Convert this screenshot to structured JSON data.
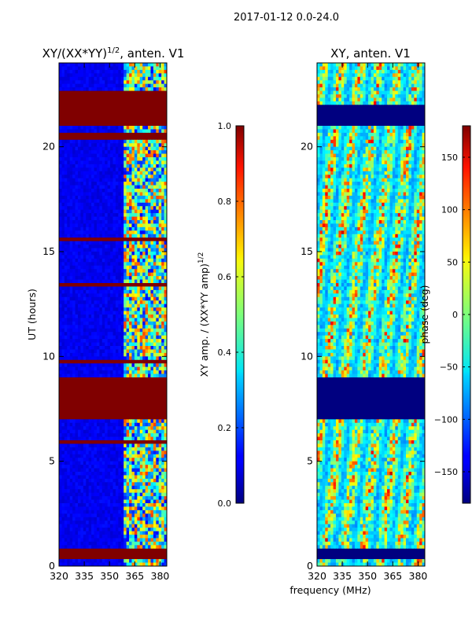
{
  "suptitle": "2017-01-12 0.0-24.0",
  "xlabel": "frequency (MHz)",
  "chart_data": [
    {
      "type": "heatmap",
      "title_prefix": "XY/(XX*YY)",
      "title_exp": "1/2",
      "title_suffix": ", anten. V1",
      "ylabel": "UT (hours)",
      "xlim": [
        320,
        384
      ],
      "ylim": [
        0,
        24
      ],
      "xticks": [
        320,
        335,
        350,
        365,
        380
      ],
      "yticks": [
        0,
        5,
        10,
        15,
        20
      ],
      "colorbar": {
        "label_main": "XY amp. / (XX*YY amp)",
        "label_exp": "1/2",
        "range": [
          0.0,
          1.0
        ],
        "ticks": [
          "0.0",
          "0.2",
          "0.4",
          "0.6",
          "0.8",
          "1.0"
        ]
      },
      "flagged_ut_ranges": [
        [
          0.4,
          0.8
        ],
        [
          5.8,
          6.0
        ],
        [
          7.0,
          9.0
        ],
        [
          9.6,
          9.8
        ],
        [
          13.3,
          13.5
        ],
        [
          15.5,
          15.7
        ],
        [
          20.3,
          20.7
        ],
        [
          21.0,
          22.6
        ]
      ],
      "description_bands": {
        "low_value_freq_range": [
          320,
          359
        ],
        "structured_freq_range": [
          359,
          384
        ]
      }
    },
    {
      "type": "heatmap",
      "title": "XY, anten. V1",
      "xlim": [
        320,
        384
      ],
      "ylim": [
        0,
        24
      ],
      "xticks": [
        320,
        335,
        350,
        365,
        380
      ],
      "yticks": [
        0,
        5,
        10,
        15,
        20
      ],
      "colorbar": {
        "label": "phase (deg)",
        "range": [
          -180,
          180
        ],
        "ticks": [
          "−150",
          "−100",
          "−50",
          "0",
          "50",
          "100",
          "150"
        ]
      },
      "flagged_ut_ranges": [
        [
          0.4,
          0.8
        ],
        [
          7.0,
          9.0
        ],
        [
          21.0,
          22.0
        ]
      ]
    }
  ]
}
